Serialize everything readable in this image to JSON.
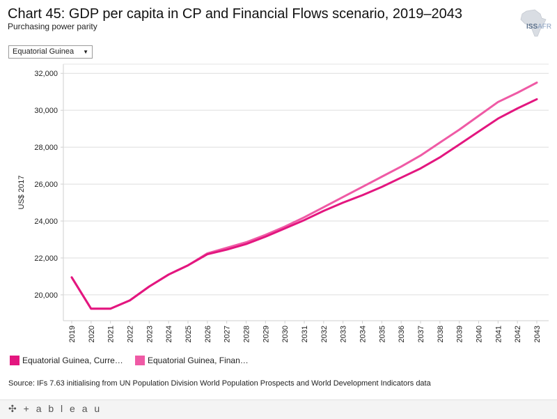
{
  "header": {
    "title": "Chart 45: GDP per capita in CP and Financial Flows scenario, 2019–2043",
    "subtitle": "Purchasing power parity"
  },
  "logo": {
    "main": "ISS",
    "suffix": "AFR"
  },
  "filter": {
    "selected": "Equatorial Guinea",
    "arrow": "▼"
  },
  "legend": {
    "items": [
      {
        "label": "Equatorial Guinea, Curre…",
        "color": "#e3167f"
      },
      {
        "label": "Equatorial Guinea, Finan…",
        "color": "#ef5aa5"
      }
    ]
  },
  "source": "Source: IFs 7.63 initialising from UN Population Division World Population Prospects and World Development Indicators data",
  "footer": {
    "brand": "+ a b l e a u",
    "mark": "✣"
  },
  "chart_data": {
    "type": "line",
    "title": "Chart 45: GDP per capita in CP and Financial Flows scenario, 2019–2043",
    "xlabel": "",
    "ylabel": "US$ 2017",
    "ylim": [
      18600,
      32500
    ],
    "yticks": [
      20000,
      22000,
      24000,
      26000,
      28000,
      30000,
      32000
    ],
    "ytick_labels": [
      "20,000",
      "22,000",
      "24,000",
      "26,000",
      "28,000",
      "30,000",
      "32,000"
    ],
    "grid": true,
    "x": [
      "2019",
      "2020",
      "2021",
      "2022",
      "2023",
      "2024",
      "2025",
      "2026",
      "2027",
      "2028",
      "2029",
      "2030",
      "2031",
      "2032",
      "2033",
      "2034",
      "2035",
      "2036",
      "2037",
      "2038",
      "2039",
      "2040",
      "2041",
      "2042",
      "2043"
    ],
    "series": [
      {
        "name": "Equatorial Guinea, Current Path",
        "color": "#e3167f",
        "values": [
          20950,
          19250,
          19250,
          19700,
          20450,
          21100,
          21600,
          22200,
          22450,
          22750,
          23150,
          23600,
          24050,
          24550,
          25000,
          25400,
          25850,
          26350,
          26850,
          27450,
          28150,
          28850,
          29550,
          30100,
          30600
        ]
      },
      {
        "name": "Equatorial Guinea, Financial Flows",
        "color": "#ef5aa5",
        "values": [
          20950,
          19250,
          19250,
          19700,
          20450,
          21100,
          21600,
          22250,
          22550,
          22850,
          23250,
          23700,
          24200,
          24750,
          25300,
          25850,
          26400,
          26950,
          27550,
          28250,
          28950,
          29700,
          30450,
          30950,
          31500
        ]
      }
    ]
  }
}
